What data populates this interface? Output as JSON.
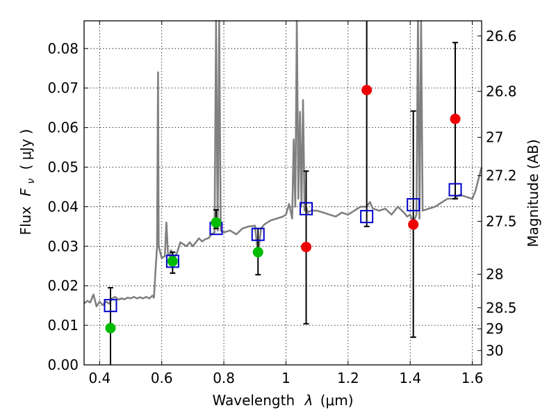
{
  "chart_data": {
    "type": "scatter",
    "title": "",
    "xlabel_text": "Wavelength",
    "xlabel_symbol": "λ",
    "xlabel_unit": "(μm)",
    "ylabel_text": "Flux",
    "ylabel_symbol": "F",
    "ylabel_subscript": "ν",
    "ylabel_unit": "( μJy )",
    "y2label": "Magnitude (AB)",
    "xlim": [
      0.35,
      1.63
    ],
    "ylim": [
      0.0,
      0.087
    ],
    "grid": true,
    "x_ticks": [
      0.4,
      0.6,
      0.8,
      1.0,
      1.2,
      1.4,
      1.6
    ],
    "x_tick_labels": [
      "0.4",
      "0.6",
      "0.8",
      "1",
      "1.2",
      "1.4",
      "1.6"
    ],
    "y_ticks": [
      0.0,
      0.01,
      0.02,
      0.03,
      0.04,
      0.05,
      0.06,
      0.07,
      0.08
    ],
    "y_tick_labels": [
      "0.00",
      "0.01",
      "0.02",
      "0.03",
      "0.04",
      "0.05",
      "0.06",
      "0.07",
      "0.08"
    ],
    "mag_ticks": [
      26.6,
      26.8,
      27,
      27.2,
      27.5,
      28,
      28.5,
      29,
      30
    ],
    "mag_tick_labels": [
      "26.6",
      "26.8",
      "27",
      "27.2",
      "27.5",
      "28",
      "28.5",
      "29",
      "30"
    ],
    "colors": {
      "template": "#808080",
      "model": "#0000cc",
      "detection": "#00bb00",
      "nondetection": "#ee0000",
      "errorbar": "#000000"
    },
    "template_spectrum": {
      "x": [
        0.35,
        0.36,
        0.37,
        0.38,
        0.39,
        0.4,
        0.41,
        0.42,
        0.43,
        0.44,
        0.45,
        0.46,
        0.47,
        0.48,
        0.49,
        0.5,
        0.51,
        0.52,
        0.53,
        0.54,
        0.55,
        0.56,
        0.57,
        0.575,
        0.58,
        0.585,
        0.588,
        0.59,
        0.6,
        0.61,
        0.615,
        0.62,
        0.625,
        0.63,
        0.64,
        0.65,
        0.66,
        0.67,
        0.68,
        0.69,
        0.7,
        0.71,
        0.72,
        0.73,
        0.74,
        0.75,
        0.76,
        0.77,
        0.775,
        0.78,
        0.785,
        0.79,
        0.8,
        0.82,
        0.84,
        0.86,
        0.88,
        0.9,
        0.91,
        0.92,
        0.93,
        0.94,
        0.95,
        0.97,
        0.99,
        1.0,
        1.01,
        1.02,
        1.025,
        1.03,
        1.035,
        1.04,
        1.045,
        1.05,
        1.055,
        1.06,
        1.065,
        1.07,
        1.08,
        1.1,
        1.12,
        1.14,
        1.16,
        1.18,
        1.2,
        1.22,
        1.24,
        1.26,
        1.27,
        1.28,
        1.3,
        1.32,
        1.34,
        1.36,
        1.38,
        1.39,
        1.4,
        1.41,
        1.42,
        1.425,
        1.43,
        1.435,
        1.44,
        1.46,
        1.48,
        1.5,
        1.52,
        1.54,
        1.56,
        1.58,
        1.6,
        1.61,
        1.62,
        1.63
      ],
      "y": [
        0.0155,
        0.0162,
        0.0158,
        0.0178,
        0.0148,
        0.016,
        0.0151,
        0.016,
        0.0155,
        0.0168,
        0.0172,
        0.0165,
        0.0168,
        0.0166,
        0.017,
        0.0168,
        0.0172,
        0.0168,
        0.0171,
        0.0168,
        0.0172,
        0.0168,
        0.0175,
        0.017,
        0.024,
        0.03,
        0.074,
        0.03,
        0.027,
        0.0275,
        0.036,
        0.028,
        0.0275,
        0.029,
        0.027,
        0.0285,
        0.031,
        0.0305,
        0.03,
        0.031,
        0.03,
        0.031,
        0.032,
        0.0312,
        0.0318,
        0.032,
        0.033,
        0.0335,
        0.09,
        0.034,
        0.09,
        0.034,
        0.0335,
        0.034,
        0.033,
        0.0345,
        0.035,
        0.0352,
        0.028,
        0.0345,
        0.0355,
        0.036,
        0.0365,
        0.037,
        0.0375,
        0.038,
        0.0407,
        0.037,
        0.057,
        0.04,
        0.09,
        0.042,
        0.064,
        0.04,
        0.067,
        0.039,
        0.04,
        0.0385,
        0.039,
        0.039,
        0.0385,
        0.038,
        0.0375,
        0.0385,
        0.038,
        0.039,
        0.04,
        0.04,
        0.0412,
        0.0395,
        0.039,
        0.0395,
        0.038,
        0.04,
        0.0385,
        0.0375,
        0.038,
        0.036,
        0.038,
        0.09,
        0.037,
        0.09,
        0.039,
        0.0395,
        0.04,
        0.041,
        0.042,
        0.042,
        0.043,
        0.0425,
        0.042,
        0.044,
        0.047,
        0.05
      ]
    },
    "model_points": [
      {
        "x": 0.435,
        "y": 0.015
      },
      {
        "x": 0.635,
        "y": 0.0262
      },
      {
        "x": 0.775,
        "y": 0.0345
      },
      {
        "x": 0.91,
        "y": 0.033
      },
      {
        "x": 1.065,
        "y": 0.0395
      },
      {
        "x": 1.26,
        "y": 0.0375
      },
      {
        "x": 1.41,
        "y": 0.0405
      },
      {
        "x": 1.545,
        "y": 0.0443
      }
    ],
    "observed_points": [
      {
        "x": 0.435,
        "y": 0.0093,
        "err_low": 0.0,
        "err_high": 0.0195,
        "status": "detection"
      },
      {
        "x": 0.635,
        "y": 0.0262,
        "err_low": 0.0232,
        "err_high": 0.0285,
        "status": "detection"
      },
      {
        "x": 0.775,
        "y": 0.036,
        "err_low": 0.0345,
        "err_high": 0.0392,
        "status": "detection"
      },
      {
        "x": 0.91,
        "y": 0.0285,
        "err_low": 0.0228,
        "err_high": 0.0345,
        "status": "detection"
      },
      {
        "x": 1.065,
        "y": 0.0298,
        "err_low": 0.0104,
        "err_high": 0.049,
        "status": "nondetection"
      },
      {
        "x": 1.26,
        "y": 0.0695,
        "err_low": 0.035,
        "err_high": 0.087,
        "status": "nondetection"
      },
      {
        "x": 1.41,
        "y": 0.0355,
        "err_low": 0.007,
        "err_high": 0.0642,
        "status": "nondetection"
      },
      {
        "x": 1.545,
        "y": 0.0622,
        "err_low": 0.042,
        "err_high": 0.0815,
        "status": "nondetection"
      }
    ]
  }
}
